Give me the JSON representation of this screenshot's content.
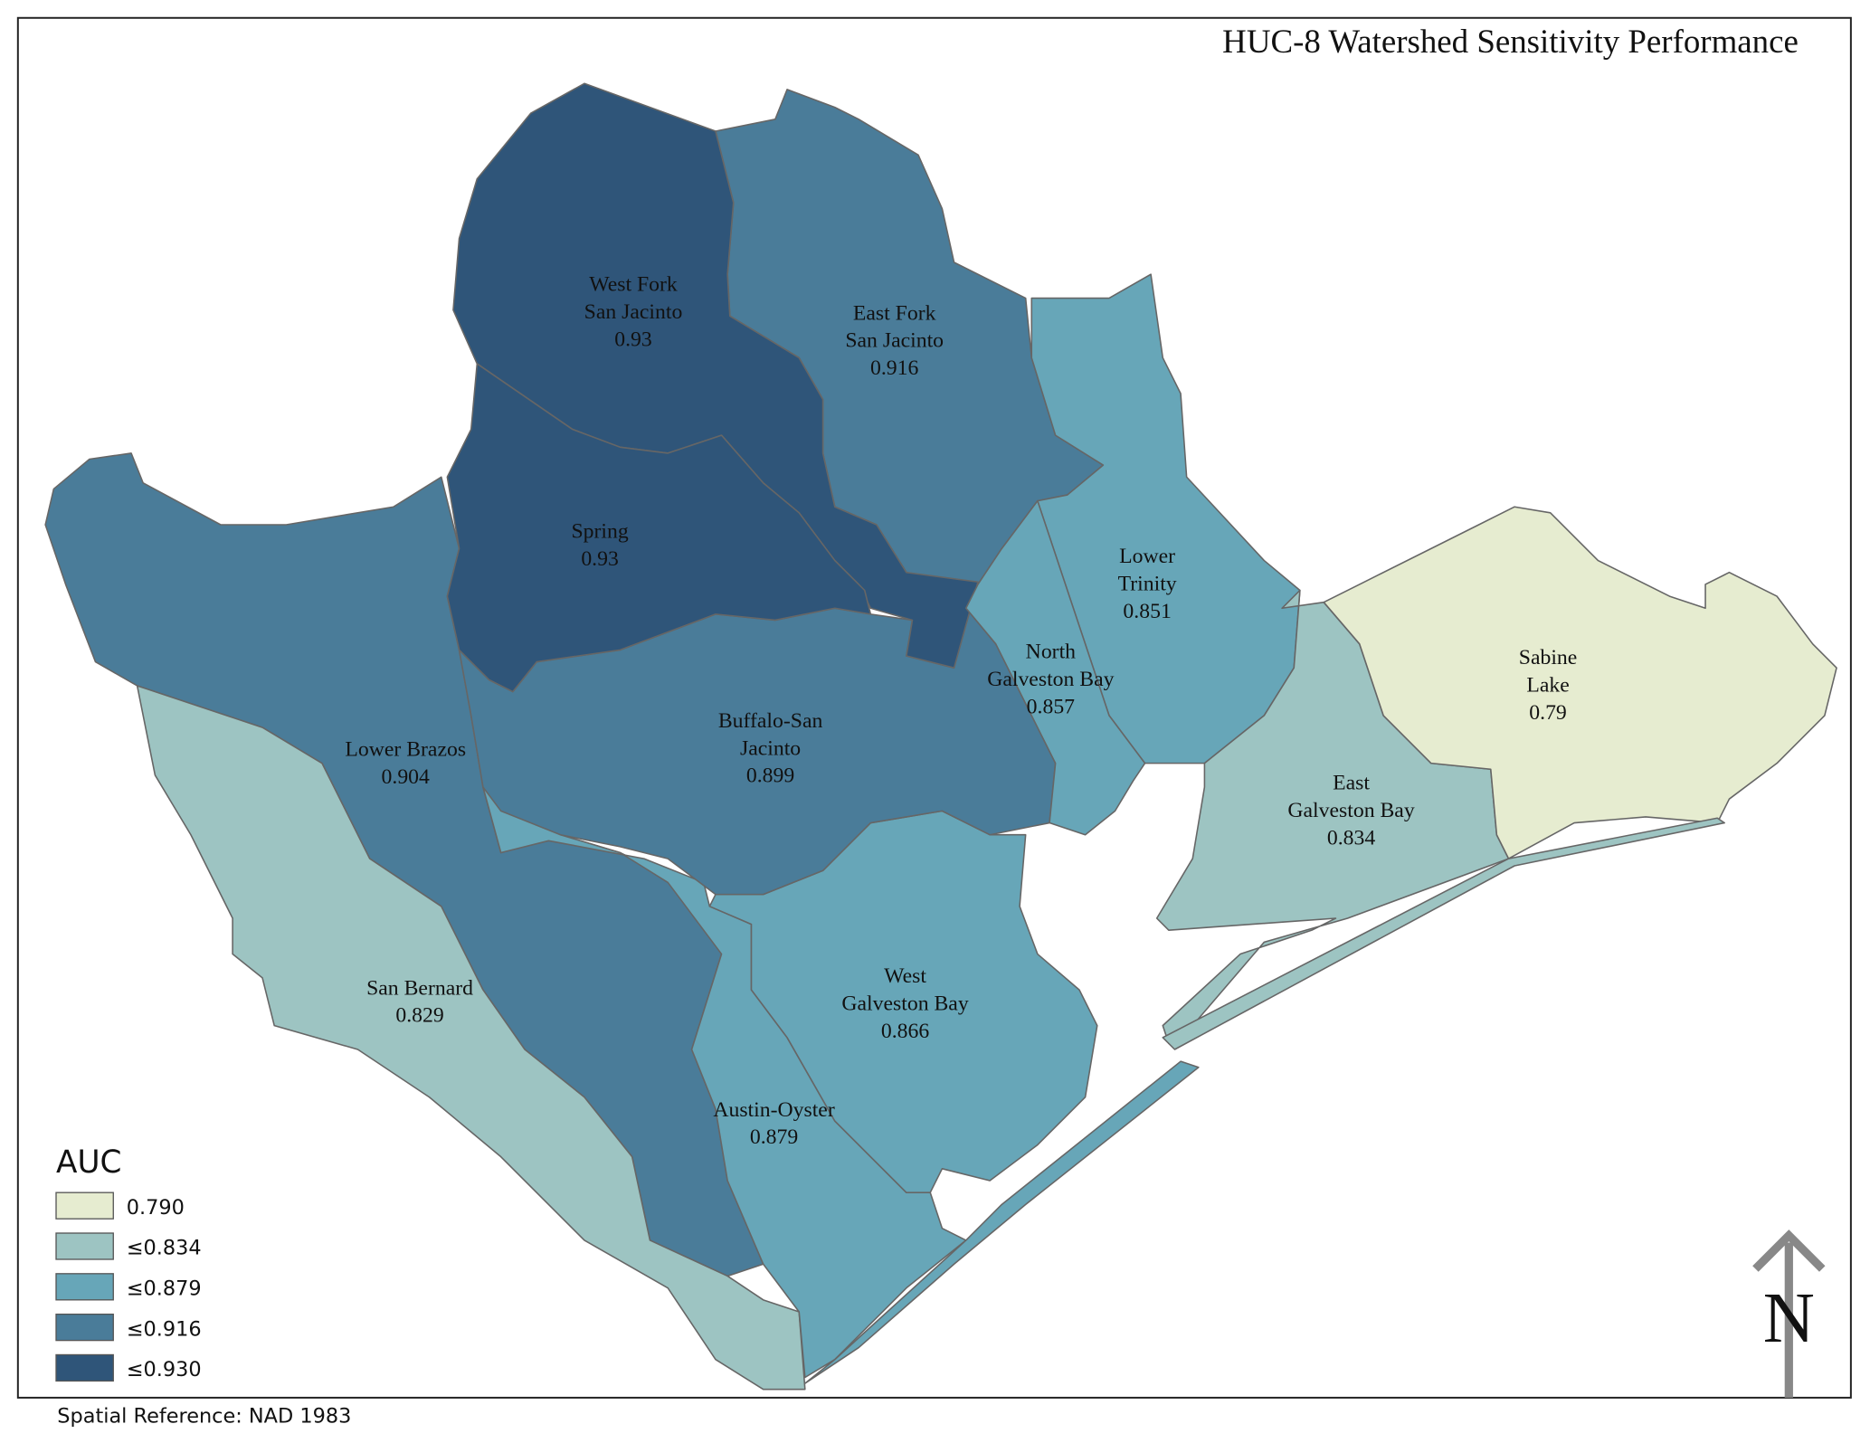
{
  "header": {
    "title": "HUC-8 Watershed Sensitivity Performance"
  },
  "regions": [
    {
      "label": [
        "West Fork",
        "San Jacinto"
      ],
      "value": 0.93,
      "color": "#2f5579"
    },
    {
      "label": [
        "Spring"
      ],
      "value": 0.93,
      "color": "#2f5579"
    },
    {
      "label": [
        "East Fork",
        "San Jacinto"
      ],
      "value": 0.916,
      "color": "#4a7c99"
    },
    {
      "label": [
        "Lower Brazos"
      ],
      "value": 0.904,
      "color": "#4a7c99"
    },
    {
      "label": [
        "Buffalo-San",
        "Jacinto"
      ],
      "value": 0.899,
      "color": "#4a7c99"
    },
    {
      "label": [
        "Austin-Oyster"
      ],
      "value": 0.879,
      "color": "#67a6b8"
    },
    {
      "label": [
        "West",
        "Galveston Bay"
      ],
      "value": 0.866,
      "color": "#67a6b8"
    },
    {
      "label": [
        "North",
        "Galveston Bay"
      ],
      "value": 0.857,
      "color": "#67a6b8"
    },
    {
      "label": [
        "Lower",
        "Trinity"
      ],
      "value": 0.851,
      "color": "#67a6b8"
    },
    {
      "label": [
        "East",
        "Galveston Bay"
      ],
      "value": 0.834,
      "color": "#9dc4c2"
    },
    {
      "label": [
        "San Bernard"
      ],
      "value": 0.829,
      "color": "#9dc4c2"
    },
    {
      "label": [
        "Sabine",
        "Lake"
      ],
      "value": 0.79,
      "color": "#e6ecd0"
    }
  ],
  "legend": {
    "title": "AUC",
    "items": [
      {
        "label": "0.790",
        "color": "#e6ecd0"
      },
      {
        "label": "≤0.834",
        "color": "#9dc4c2"
      },
      {
        "label": "≤0.879",
        "color": "#67a6b8"
      },
      {
        "label": "≤0.916",
        "color": "#4a7c99"
      },
      {
        "label": "≤0.930",
        "color": "#2f5579"
      }
    ]
  },
  "footer": {
    "spatial_reference": "Spatial Reference: NAD 1983"
  },
  "north_arrow": {
    "label": "N"
  }
}
